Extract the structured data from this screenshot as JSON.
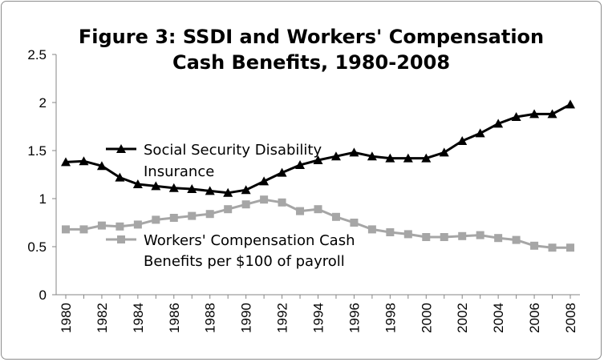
{
  "chart_data": {
    "type": "line",
    "title_lines": [
      "Figure 3: SSDI and Workers' Compensation",
      "Cash Benefits, 1980-2008"
    ],
    "xlabel": "",
    "ylabel": "",
    "x": [
      1980,
      1981,
      1982,
      1983,
      1984,
      1985,
      1986,
      1987,
      1988,
      1989,
      1990,
      1991,
      1992,
      1993,
      1994,
      1995,
      1996,
      1997,
      1998,
      1999,
      2000,
      2001,
      2002,
      2003,
      2004,
      2005,
      2006,
      2007,
      2008
    ],
    "x_tick_labels": [
      "1980",
      "1982",
      "1984",
      "1986",
      "1988",
      "1990",
      "1992",
      "1994",
      "1996",
      "1998",
      "2000",
      "2002",
      "2004",
      "2006",
      "2008"
    ],
    "ylim": [
      0,
      2.5
    ],
    "y_ticks": [
      "0",
      "0.5",
      "1",
      "1.5",
      "2",
      "2.5"
    ],
    "grid": false,
    "series": [
      {
        "name_lines": [
          "Social Security Disability",
          "Insurance"
        ],
        "color": "#000000",
        "marker": "triangle",
        "values": [
          1.38,
          1.39,
          1.34,
          1.22,
          1.15,
          1.13,
          1.11,
          1.1,
          1.08,
          1.06,
          1.09,
          1.18,
          1.27,
          1.35,
          1.4,
          1.44,
          1.48,
          1.44,
          1.42,
          1.42,
          1.42,
          1.48,
          1.6,
          1.68,
          1.78,
          1.85,
          1.88,
          1.88,
          1.98
        ]
      },
      {
        "name_lines": [
          "Workers' Compensation Cash",
          "Benefits per $100 of payroll"
        ],
        "color": "#a6a6a6",
        "marker": "square",
        "values": [
          0.68,
          0.68,
          0.72,
          0.71,
          0.73,
          0.78,
          0.8,
          0.82,
          0.84,
          0.89,
          0.94,
          0.99,
          0.96,
          0.87,
          0.89,
          0.81,
          0.75,
          0.68,
          0.65,
          0.63,
          0.6,
          0.6,
          0.61,
          0.62,
          0.59,
          0.57,
          0.51,
          0.49,
          0.49
        ]
      }
    ]
  }
}
